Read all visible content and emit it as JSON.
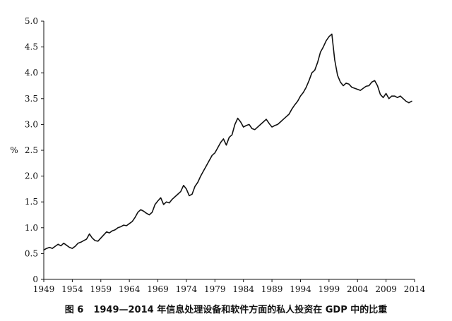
{
  "caption": {
    "figure_number": "图 6",
    "text": "1949—2014 年信息处理设备和软件方面的私人投资在 GDP 中的比重"
  },
  "chart_data": {
    "type": "line",
    "title": "",
    "xlabel": "",
    "ylabel": "%",
    "xlim": [
      1949,
      2014
    ],
    "ylim": [
      0,
      5.0
    ],
    "grid": false,
    "legend": "none",
    "line_color": "#111111",
    "x_ticks": [
      "1949",
      "1954",
      "1959",
      "1964",
      "1969",
      "1974",
      "1979",
      "1984",
      "1989",
      "1994",
      "1999",
      "2004",
      "2009",
      "2014"
    ],
    "y_ticks": [
      "0",
      "0.5",
      "1.0",
      "1.5",
      "2.0",
      "2.5",
      "3.0",
      "3.5",
      "4.0",
      "4.5",
      "5.0"
    ],
    "series": [
      {
        "x": [
          1949.0,
          1949.5,
          1950.0,
          1950.5,
          1951.0,
          1951.5,
          1952.0,
          1952.5,
          1953.0,
          1953.5,
          1954.0,
          1954.5,
          1955.0,
          1955.5,
          1956.0,
          1956.5,
          1957.0,
          1957.5,
          1958.0,
          1958.5,
          1959.0,
          1959.5,
          1960.0,
          1960.5,
          1961.0,
          1961.5,
          1962.0,
          1962.5,
          1963.0,
          1963.5,
          1964.0,
          1964.5,
          1965.0,
          1965.5,
          1966.0,
          1966.5,
          1967.0,
          1967.5,
          1968.0,
          1968.5,
          1969.0,
          1969.5,
          1970.0,
          1970.5,
          1971.0,
          1971.5,
          1972.0,
          1972.5,
          1973.0,
          1973.5,
          1974.0,
          1974.5,
          1975.0,
          1975.5,
          1976.0,
          1976.5,
          1977.0,
          1977.5,
          1978.0,
          1978.5,
          1979.0,
          1979.5,
          1980.0,
          1980.5,
          1981.0,
          1981.5,
          1982.0,
          1982.5,
          1983.0,
          1983.5,
          1984.0,
          1984.5,
          1985.0,
          1985.5,
          1986.0,
          1986.5,
          1987.0,
          1987.5,
          1988.0,
          1988.5,
          1989.0,
          1989.5,
          1990.0,
          1990.5,
          1991.0,
          1991.5,
          1992.0,
          1992.5,
          1993.0,
          1993.5,
          1994.0,
          1994.5,
          1995.0,
          1995.5,
          1996.0,
          1996.5,
          1997.0,
          1997.5,
          1998.0,
          1998.5,
          1999.0,
          1999.5,
          2000.0,
          2000.5,
          2001.0,
          2001.5,
          2002.0,
          2002.5,
          2003.0,
          2003.5,
          2004.0,
          2004.5,
          2005.0,
          2005.5,
          2006.0,
          2006.5,
          2007.0,
          2007.5,
          2008.0,
          2008.5,
          2009.0,
          2009.5,
          2010.0,
          2010.5,
          2011.0,
          2011.5,
          2012.0,
          2012.5,
          2013.0,
          2013.5
        ],
        "values": [
          0.57,
          0.6,
          0.62,
          0.6,
          0.64,
          0.68,
          0.65,
          0.7,
          0.66,
          0.62,
          0.6,
          0.64,
          0.7,
          0.72,
          0.75,
          0.78,
          0.88,
          0.8,
          0.75,
          0.74,
          0.8,
          0.86,
          0.92,
          0.9,
          0.94,
          0.96,
          1.0,
          1.02,
          1.05,
          1.04,
          1.08,
          1.12,
          1.2,
          1.3,
          1.35,
          1.32,
          1.28,
          1.25,
          1.3,
          1.45,
          1.52,
          1.58,
          1.45,
          1.5,
          1.48,
          1.55,
          1.6,
          1.65,
          1.7,
          1.82,
          1.75,
          1.62,
          1.65,
          1.8,
          1.88,
          2.0,
          2.1,
          2.2,
          2.3,
          2.4,
          2.45,
          2.55,
          2.65,
          2.72,
          2.6,
          2.75,
          2.8,
          3.0,
          3.12,
          3.05,
          2.95,
          2.98,
          3.0,
          2.92,
          2.9,
          2.95,
          3.0,
          3.05,
          3.1,
          3.02,
          2.95,
          2.98,
          3.0,
          3.05,
          3.1,
          3.15,
          3.2,
          3.3,
          3.38,
          3.45,
          3.55,
          3.62,
          3.72,
          3.85,
          4.0,
          4.05,
          4.2,
          4.4,
          4.5,
          4.62,
          4.7,
          4.75,
          4.25,
          3.95,
          3.82,
          3.75,
          3.8,
          3.78,
          3.72,
          3.7,
          3.68,
          3.66,
          3.7,
          3.74,
          3.75,
          3.82,
          3.85,
          3.75,
          3.58,
          3.52,
          3.6,
          3.5,
          3.55,
          3.55,
          3.52,
          3.55,
          3.5,
          3.45,
          3.42,
          3.45
        ]
      }
    ]
  }
}
